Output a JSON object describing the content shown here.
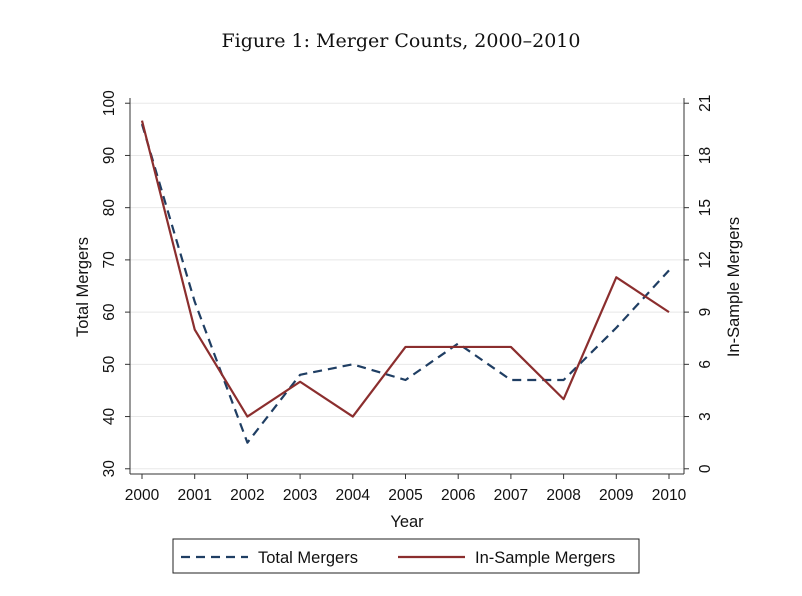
{
  "figure": {
    "title": "Figure 1: Merger Counts, 2000–2010"
  },
  "chart_data": {
    "type": "line",
    "x": [
      "2000",
      "2001",
      "2002",
      "2003",
      "2004",
      "2005",
      "2006",
      "2007",
      "2008",
      "2009",
      "2010"
    ],
    "xlabel": "Year",
    "y_left": {
      "label": "Total Mergers",
      "ticks": [
        30,
        40,
        50,
        60,
        70,
        80,
        90,
        100
      ],
      "range": [
        29,
        101
      ]
    },
    "y_right": {
      "label": "In-Sample Mergers",
      "ticks": [
        0,
        3,
        6,
        9,
        12,
        15,
        18,
        21
      ],
      "range": [
        -0.3,
        21.3
      ]
    },
    "grid": true,
    "legend_position": "bottom",
    "series": [
      {
        "name": "Total Mergers",
        "axis": "left",
        "style": "dashed",
        "color": "#1f3e63",
        "values": [
          96,
          62,
          35,
          48,
          50,
          47,
          54,
          47,
          47,
          57,
          68
        ]
      },
      {
        "name": "In-Sample Mergers",
        "axis": "right",
        "style": "solid",
        "color": "#8b2e2e",
        "values": [
          20,
          8,
          3,
          5,
          3,
          7,
          7,
          7,
          4,
          11,
          9
        ]
      }
    ]
  }
}
